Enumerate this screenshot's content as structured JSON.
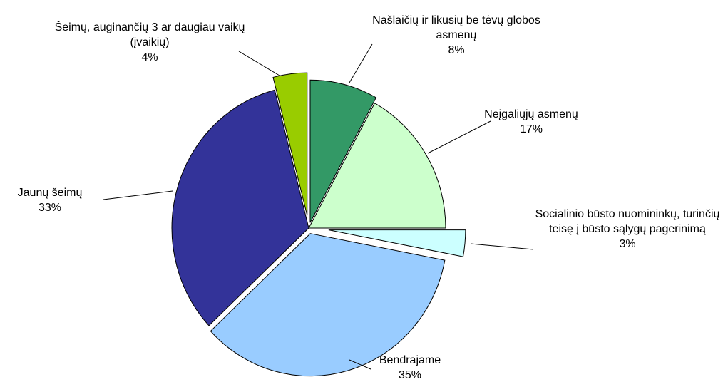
{
  "chart_data": {
    "type": "pie",
    "categories": [
      "Našlaičių ir likusių be tėvų globos asmenų",
      "Neįgaliųjų asmenų",
      "Socialinio būsto nuomininkų, turinčių teisę į būsto sąlygų pagerinimą",
      "Bendrajame",
      "Jaunų šeimų",
      "Šeimų, auginančių 3 ar daugiau vaikų (įvaikių)"
    ],
    "values": [
      8,
      17,
      3,
      35,
      33,
      4
    ],
    "value_labels": [
      "8%",
      "17%",
      "3%",
      "35%",
      "33%",
      "4%"
    ],
    "colors": [
      "#339966",
      "#ccffcc",
      "#ccffff",
      "#99ccff",
      "#333399",
      "#99cc00"
    ]
  }
}
